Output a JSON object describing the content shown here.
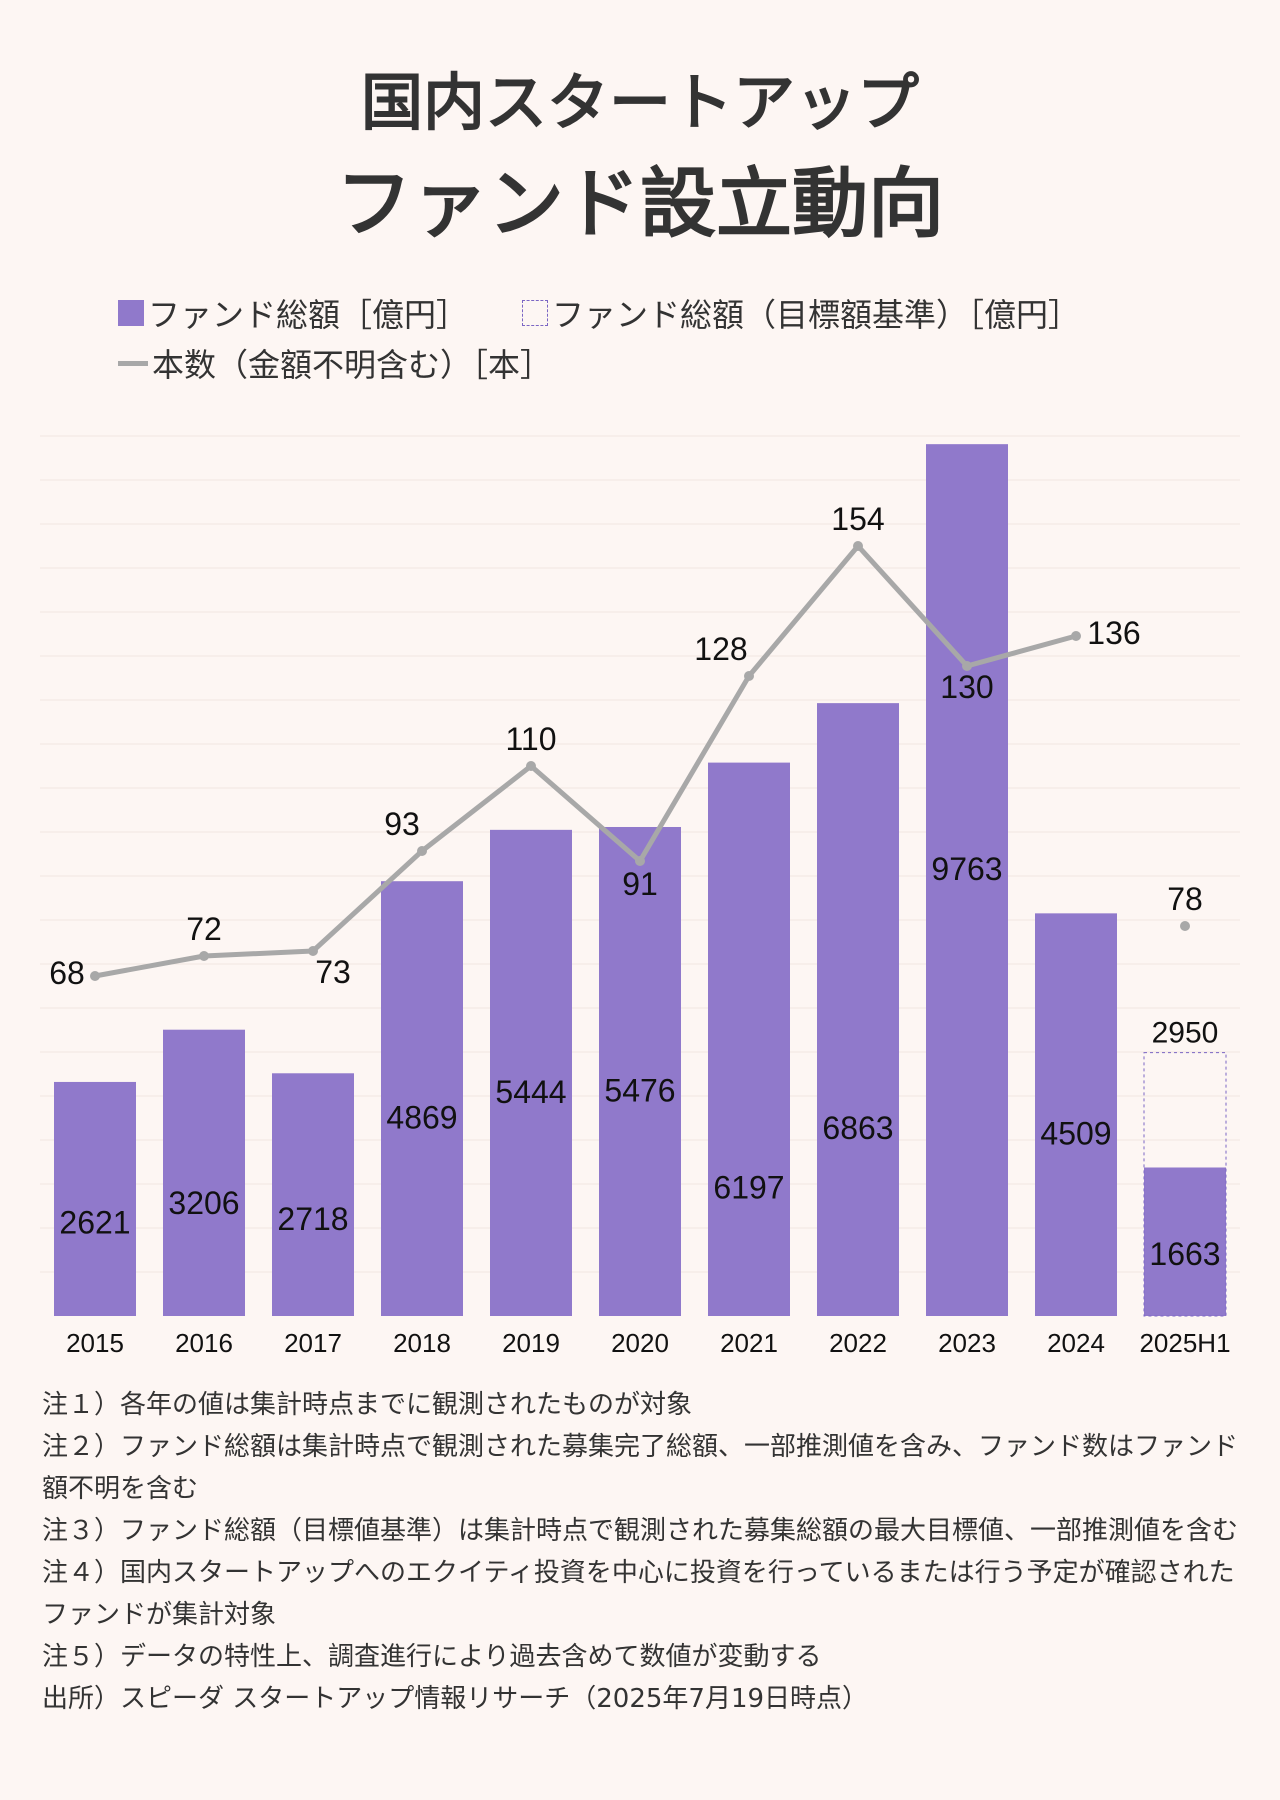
{
  "title_line1": "国内スタートアップ",
  "title_line2": "ファンド設立動向",
  "legend": {
    "total": "ファンド総額［億円］",
    "target": "ファンド総額（目標額基準）［億円］",
    "count": "本数（金額不明含む）［本］"
  },
  "colors": {
    "bar": "#9079cb",
    "target_border": "#7b66c4",
    "line": "#a8a8a8",
    "background": "#fdf6f3"
  },
  "chart_data": {
    "type": "bar",
    "categories": [
      "2015",
      "2016",
      "2017",
      "2018",
      "2019",
      "2020",
      "2021",
      "2022",
      "2023",
      "2024",
      "2025H1"
    ],
    "series": [
      {
        "name": "ファンド総額［億円］",
        "type": "bar",
        "values": [
          2621,
          3206,
          2718,
          4869,
          5444,
          5476,
          6197,
          6863,
          9763,
          4509,
          1663
        ]
      },
      {
        "name": "ファンド総額（目標額基準）［億円］",
        "type": "bar-outline",
        "values": [
          null,
          null,
          null,
          null,
          null,
          null,
          null,
          null,
          null,
          null,
          2950
        ]
      },
      {
        "name": "本数（金額不明含む）［本］",
        "type": "line",
        "values": [
          68,
          72,
          73,
          93,
          110,
          91,
          128,
          154,
          130,
          136,
          78
        ]
      }
    ],
    "bar_ylim": [
      0,
      10000
    ],
    "line_ylim": [
      0,
      200
    ],
    "line_connected_through": "2024",
    "grid": true
  },
  "notes": [
    "注１）各年の値は集計時点までに観測されたものが対象",
    "注２）ファンド総額は集計時点で観測された募集完了総額、一部推測値を含み、ファンド数はファンド額不明を含む",
    "注３）ファンド総額（目標値基準）は集計時点で観測された募集総額の最大目標値、一部推測値を含む",
    "注４）国内スタートアップへのエクイティ投資を中心に投資を行っているまたは行う予定が確認されたファンドが集計対象",
    "注５）データの特性上、調査進行により過去含めて数値が変動する",
    "出所）スピーダ スタートアップ情報リサーチ（2025年7月19日時点）"
  ]
}
